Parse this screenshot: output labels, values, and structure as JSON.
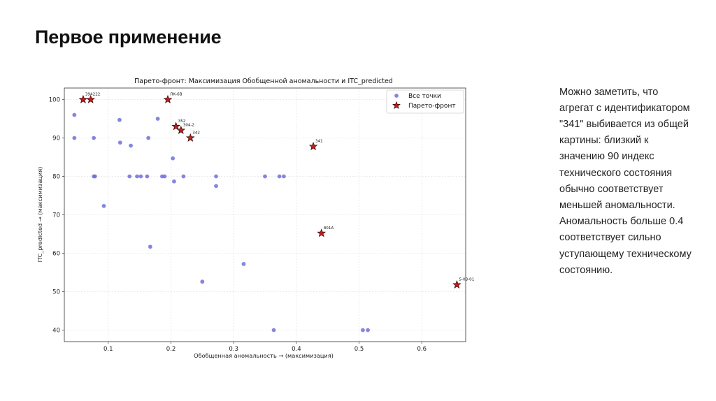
{
  "slide": {
    "title": "Первое применение",
    "commentary": "Можно заметить, что агрегат с идентификатором \"341\" выбивается из общей картины: близкий к значению 90 индекс технического состояния обычно соответствует меньшей аномальности. Аномальность больше 0.4 соответствует сильно уступающему техническому состоянию."
  },
  "chart_data": {
    "type": "scatter",
    "title": "Парето-фронт: Максимизация Обобщенной аномальности и ITC_predicted",
    "xlabel": "Обобщенная аномальность → (максимизация)",
    "ylabel": "ITC_predicted → (максимизация)",
    "xlim": [
      0.03,
      0.67
    ],
    "ylim": [
      37,
      103
    ],
    "xticks": [
      0.1,
      0.2,
      0.3,
      0.4,
      0.5,
      0.6
    ],
    "xtick_labels": [
      "0.1",
      "0.2",
      "0.3",
      "0.4",
      "0.5",
      "0.6"
    ],
    "yticks": [
      40,
      50,
      60,
      70,
      80,
      90,
      100
    ],
    "ytick_labels": [
      "40",
      "50",
      "60",
      "70",
      "80",
      "90",
      "100"
    ],
    "grid": true,
    "legend_position": "top-right",
    "series": [
      {
        "name": "Все точки",
        "marker": "circle",
        "color": "#6a6adb",
        "points": [
          [
            0.046,
            96
          ],
          [
            0.046,
            90
          ],
          [
            0.077,
            90
          ],
          [
            0.077,
            80
          ],
          [
            0.079,
            80
          ],
          [
            0.093,
            72.3
          ],
          [
            0.118,
            94.7
          ],
          [
            0.119,
            88.8
          ],
          [
            0.134,
            80
          ],
          [
            0.136,
            88
          ],
          [
            0.146,
            80
          ],
          [
            0.152,
            80
          ],
          [
            0.162,
            80
          ],
          [
            0.164,
            90
          ],
          [
            0.167,
            61.7
          ],
          [
            0.179,
            95
          ],
          [
            0.186,
            80
          ],
          [
            0.19,
            80
          ],
          [
            0.203,
            84.7
          ],
          [
            0.205,
            78.7
          ],
          [
            0.22,
            80
          ],
          [
            0.25,
            52.6
          ],
          [
            0.272,
            80
          ],
          [
            0.272,
            77.5
          ],
          [
            0.316,
            57.2
          ],
          [
            0.35,
            80
          ],
          [
            0.364,
            40
          ],
          [
            0.373,
            80
          ],
          [
            0.38,
            80
          ],
          [
            0.506,
            40
          ],
          [
            0.514,
            40
          ]
        ]
      },
      {
        "name": "Парето-фронт",
        "marker": "star",
        "color": "#c11f1f",
        "points": [
          {
            "x": 0.06,
            "y": 100,
            "label": "394"
          },
          {
            "x": 0.072,
            "y": 100,
            "label": "222"
          },
          {
            "x": 0.195,
            "y": 100,
            "label": "ЛК-6В"
          },
          {
            "x": 0.208,
            "y": 93,
            "label": "352"
          },
          {
            "x": 0.216,
            "y": 92,
            "label": "304-2"
          },
          {
            "x": 0.231,
            "y": 90,
            "label": "342"
          },
          {
            "x": 0.427,
            "y": 87.8,
            "label": "341"
          },
          {
            "x": 0.44,
            "y": 65.2,
            "label": "801А"
          },
          {
            "x": 0.656,
            "y": 51.8,
            "label": "5-03-01"
          }
        ]
      }
    ]
  }
}
